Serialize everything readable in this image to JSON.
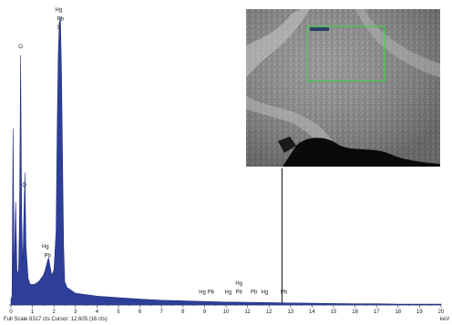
{
  "chart_data": {
    "type": "line",
    "xlim": [
      0,
      20
    ],
    "ticks": [
      "0",
      "1",
      "2",
      "3",
      "4",
      "5",
      "6",
      "7",
      "8",
      "9",
      "10",
      "11",
      "12",
      "13",
      "14",
      "15",
      "16",
      "17",
      "18",
      "19",
      "20"
    ],
    "cursor_x": 12.605,
    "fill_color": "#2e3f9a",
    "spectrum": [
      [
        0.0,
        0.02
      ],
      [
        0.05,
        0.03
      ],
      [
        0.1,
        0.6
      ],
      [
        0.15,
        0.1
      ],
      [
        0.22,
        0.35
      ],
      [
        0.28,
        0.12
      ],
      [
        0.35,
        0.1
      ],
      [
        0.4,
        0.3
      ],
      [
        0.45,
        0.85
      ],
      [
        0.5,
        0.3
      ],
      [
        0.55,
        0.12
      ],
      [
        0.6,
        0.3
      ],
      [
        0.65,
        0.45
      ],
      [
        0.7,
        0.2
      ],
      [
        0.8,
        0.09
      ],
      [
        0.9,
        0.07
      ],
      [
        1.0,
        0.07
      ],
      [
        1.1,
        0.07
      ],
      [
        1.2,
        0.075
      ],
      [
        1.3,
        0.08
      ],
      [
        1.4,
        0.09
      ],
      [
        1.5,
        0.1
      ],
      [
        1.6,
        0.12
      ],
      [
        1.7,
        0.15
      ],
      [
        1.75,
        0.16
      ],
      [
        1.8,
        0.14
      ],
      [
        1.9,
        0.1
      ],
      [
        2.0,
        0.12
      ],
      [
        2.1,
        0.25
      ],
      [
        2.15,
        0.6
      ],
      [
        2.2,
        0.85
      ],
      [
        2.25,
        0.96
      ],
      [
        2.3,
        0.98
      ],
      [
        2.35,
        0.8
      ],
      [
        2.4,
        0.5
      ],
      [
        2.45,
        0.2
      ],
      [
        2.5,
        0.08
      ],
      [
        2.6,
        0.06
      ],
      [
        2.8,
        0.05
      ],
      [
        3.0,
        0.04
      ],
      [
        3.5,
        0.035
      ],
      [
        4.0,
        0.03
      ],
      [
        5.0,
        0.025
      ],
      [
        6.0,
        0.02
      ],
      [
        7.0,
        0.016
      ],
      [
        8.0,
        0.014
      ],
      [
        9.0,
        0.012
      ],
      [
        10.0,
        0.01
      ],
      [
        11.0,
        0.009
      ],
      [
        12.0,
        0.008
      ],
      [
        13.0,
        0.007
      ],
      [
        14.0,
        0.006
      ],
      [
        15.0,
        0.005
      ],
      [
        16.0,
        0.004
      ],
      [
        17.0,
        0.004
      ],
      [
        18.0,
        0.003
      ],
      [
        19.0,
        0.003
      ],
      [
        20.0,
        0.003
      ]
    ],
    "peak_labels": [
      {
        "text": "Hg",
        "x": 2.22,
        "y": 0.995
      },
      {
        "text": "Pb",
        "x": 2.3,
        "y": 0.965
      },
      {
        "text": "S",
        "x": 2.22,
        "y": 0.935
      },
      {
        "text": "O",
        "x": 0.45,
        "y": 0.87
      },
      {
        "text": "O",
        "x": 0.62,
        "y": 0.4
      },
      {
        "text": "Hg",
        "x": 1.6,
        "y": 0.19
      },
      {
        "text": "Pb",
        "x": 1.7,
        "y": 0.16
      },
      {
        "text": "Hg",
        "x": 8.9,
        "y": 0.035
      },
      {
        "text": "Pb",
        "x": 9.3,
        "y": 0.035
      },
      {
        "text": "Hg",
        "x": 10.1,
        "y": 0.035
      },
      {
        "text": "Pb",
        "x": 10.6,
        "y": 0.035
      },
      {
        "text": "Hg",
        "x": 10.6,
        "y": 0.065
      },
      {
        "text": "Pb",
        "x": 11.3,
        "y": 0.035
      },
      {
        "text": "Hg",
        "x": 11.8,
        "y": 0.035
      },
      {
        "text": "Pb",
        "x": 12.7,
        "y": 0.035
      }
    ]
  },
  "status_bar": "Full Scale 8317 cts Cursor: 12.605  (16 cts)",
  "unit_label": "keV"
}
